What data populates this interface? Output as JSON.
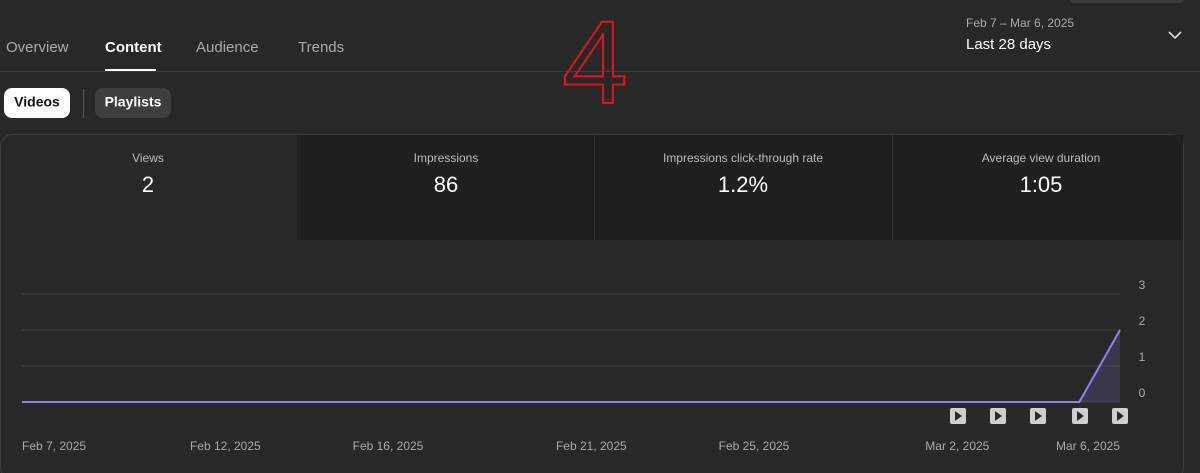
{
  "tabs": [
    "Overview",
    "Content",
    "Audience",
    "Trends"
  ],
  "date_range": {
    "range": "Feb 7 – Mar 6, 2025",
    "label": "Last 28 days"
  },
  "chips": [
    "Videos",
    "Playlists"
  ],
  "annotation": "4",
  "metrics": [
    {
      "label": "Views",
      "value": "2"
    },
    {
      "label": "Impressions",
      "value": "86"
    },
    {
      "label": "Impressions click-through rate",
      "value": "1.2%"
    },
    {
      "label": "Average view duration",
      "value": "1:05"
    }
  ],
  "chart_data": {
    "type": "line",
    "categories": [
      "Feb 7, 2025",
      null,
      null,
      null,
      null,
      "Feb 12, 2025",
      null,
      null,
      null,
      "Feb 16, 2025",
      null,
      null,
      null,
      null,
      "Feb 21, 2025",
      null,
      null,
      null,
      "Feb 25, 2025",
      null,
      null,
      null,
      null,
      "Mar 2, 2025",
      null,
      null,
      null,
      "Mar 6, 2025"
    ],
    "values": [
      0,
      0,
      0,
      0,
      0,
      0,
      0,
      0,
      0,
      0,
      0,
      0,
      0,
      0,
      0,
      0,
      0,
      0,
      0,
      0,
      0,
      0,
      0,
      0,
      0,
      0,
      0,
      2
    ],
    "color": "#8a83f0",
    "ylim": [
      0,
      3
    ],
    "yticks": [
      0,
      1,
      2,
      3
    ],
    "grid": true
  }
}
